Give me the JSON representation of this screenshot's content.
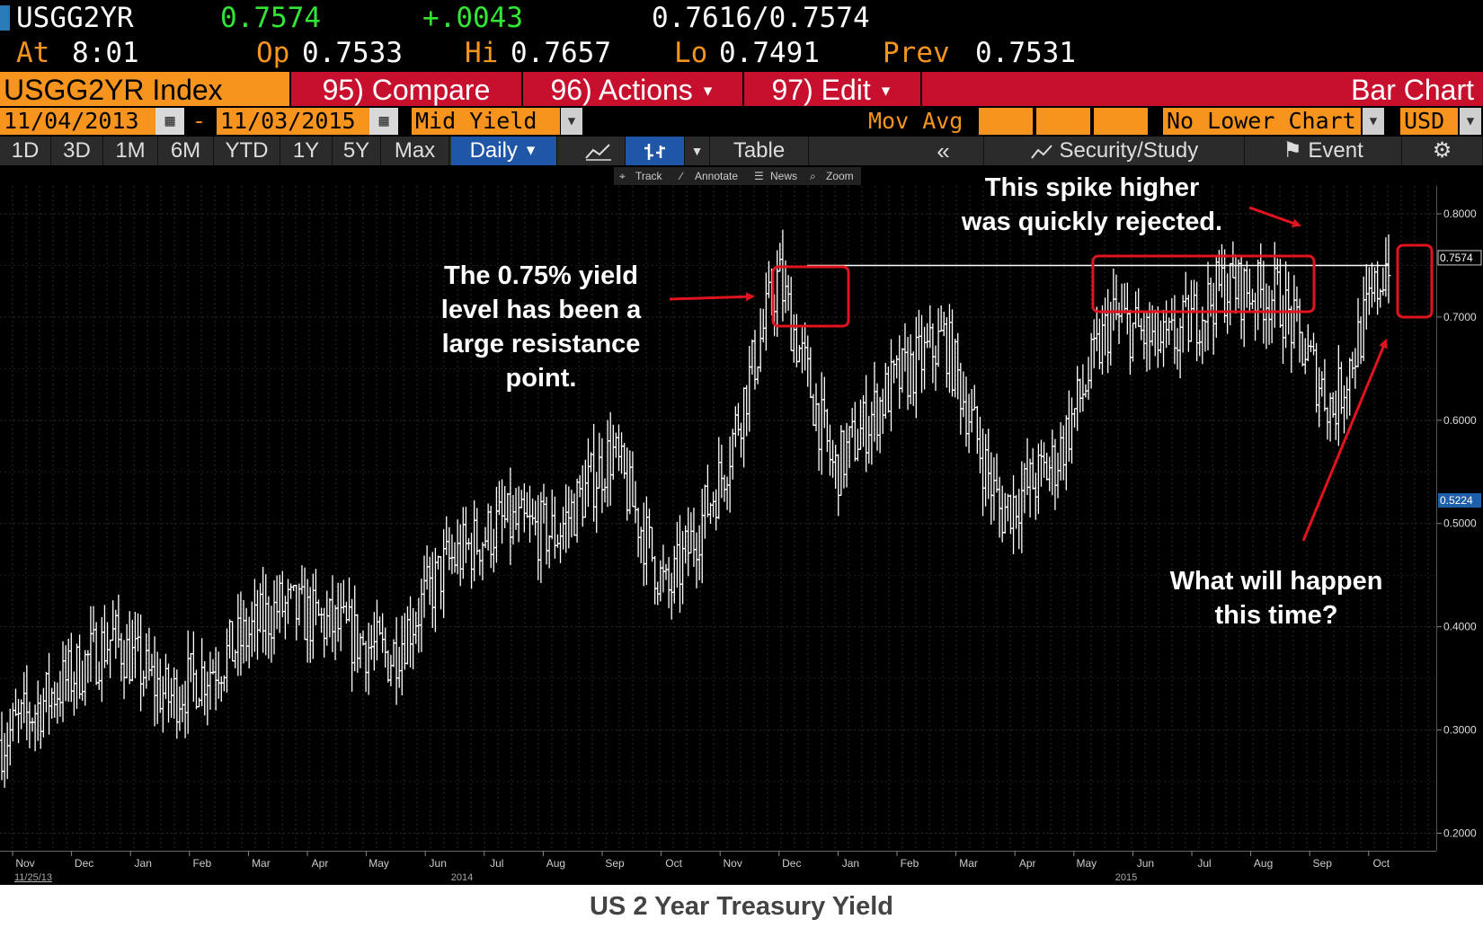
{
  "quote": {
    "ticker": "USGG2YR",
    "last": "0.7574",
    "change": "+.0043",
    "bid_ask": "0.7616/0.7574",
    "time_label": "At",
    "time": "8:01",
    "open_label": "Op",
    "open": "0.7533",
    "high_label": "Hi",
    "high": "0.7657",
    "low_label": "Lo",
    "low": "0.7491",
    "prev_label": "Prev",
    "prev": "0.7531"
  },
  "menu": {
    "index_name": "USGG2YR Index",
    "compare": "95) Compare",
    "actions": "96) Actions",
    "edit": "97) Edit",
    "chart_type": "Bar Chart"
  },
  "options": {
    "start_date": "11/04/2013",
    "date_sep": "-",
    "end_date": "11/03/2015",
    "field": "Mid Yield",
    "mov_avg_label": "Mov Avg",
    "lower_chart": "No Lower Chart",
    "currency": "USD"
  },
  "tools": {
    "ranges": [
      "1D",
      "3D",
      "1M",
      "6M",
      "YTD",
      "1Y",
      "5Y",
      "Max"
    ],
    "period": "Daily",
    "table": "Table",
    "security_study": "Security/Study",
    "event": "Event"
  },
  "mini_toolbar": [
    "Track",
    "Annotate",
    "News",
    "Zoom"
  ],
  "annotations": {
    "resistance": [
      "The 0.75% yield",
      "level has been a",
      "large resistance",
      "point."
    ],
    "spike": [
      "This spike higher",
      "was quickly rejected."
    ],
    "question": [
      "What will happen",
      "this time?"
    ]
  },
  "caption": "US 2 Year Treasury Yield",
  "colors": {
    "accent_orange": "#f7941d",
    "menu_red": "#c8102e",
    "quote_green": "#33e633",
    "annotation_red": "#e0141e"
  },
  "chart_data": {
    "type": "bar",
    "subtype": "ohlc",
    "title": "",
    "xlabel": "",
    "ylabel": "",
    "x_start": "11/04/2013",
    "x_end": "11/03/2015",
    "ylim": [
      0.19,
      0.82
    ],
    "y_ticks": [
      "0.2000",
      "0.3000",
      "0.4000",
      "0.5000",
      "0.6000",
      "0.7000",
      "0.8000"
    ],
    "month_labels": [
      "Nov",
      "Dec",
      "Jan",
      "Feb",
      "Mar",
      "Apr",
      "May",
      "Jun",
      "Jul",
      "Aug",
      "Sep",
      "Oct",
      "Nov",
      "Dec",
      "Jan",
      "Feb",
      "Mar",
      "Apr",
      "May",
      "Jun",
      "Jul",
      "Aug",
      "Sep",
      "Oct"
    ],
    "year_labels": [
      "2014",
      "2015"
    ],
    "start_label": "11/25/13",
    "last_price_label": "0.7574",
    "marker_label": "0.5224",
    "resistance_level": 0.75,
    "grid": true,
    "legend": "none",
    "monthly_close": [
      0.29,
      0.34,
      0.39,
      0.33,
      0.37,
      0.42,
      0.4,
      0.37,
      0.46,
      0.5,
      0.49,
      0.57,
      0.43,
      0.55,
      0.74,
      0.55,
      0.63,
      0.68,
      0.51,
      0.56,
      0.7,
      0.67,
      0.73,
      0.72,
      0.61,
      0.76
    ]
  }
}
